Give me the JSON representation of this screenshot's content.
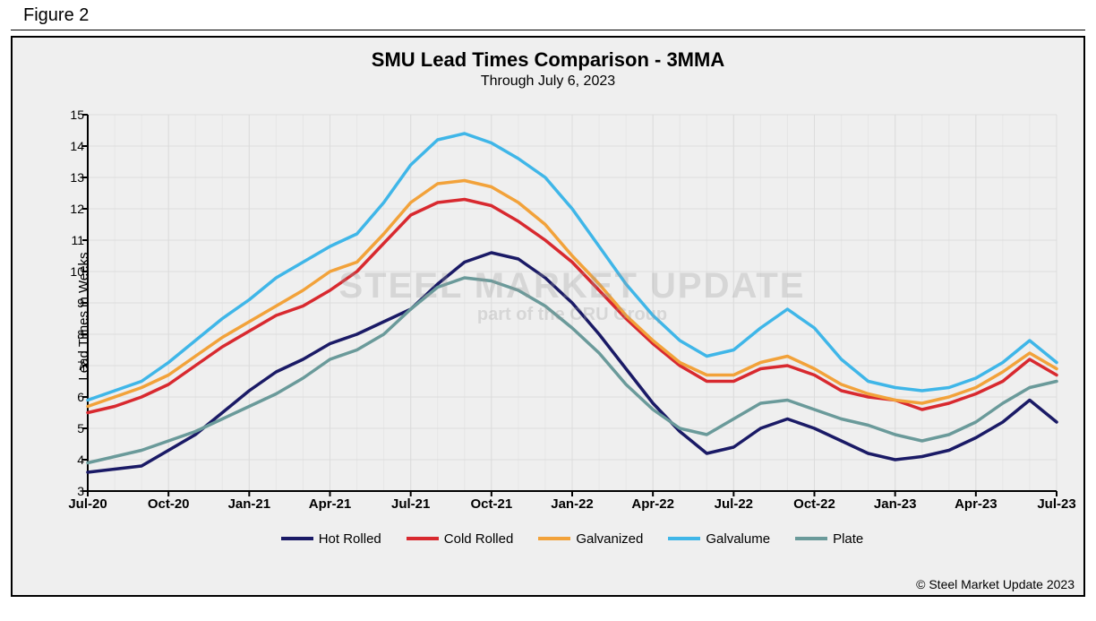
{
  "figure_label": "Figure 2",
  "chart": {
    "type": "line",
    "title": "SMU Lead Times Comparison - 3MMA",
    "subtitle": "Through July 6, 2023",
    "ylabel": "Lead Times in Weeks",
    "background_color": "#efefef",
    "frame_border_color": "#000000",
    "grid_color": "#dcdcdc",
    "grid_minor_color": "#e6e6e6",
    "axis_line_color": "#000000",
    "line_width": 3.5,
    "title_fontsize": 22,
    "subtitle_fontsize": 16,
    "label_fontsize": 15,
    "tick_fontsize": 14,
    "ylim": [
      3,
      15
    ],
    "ytick_step": 1,
    "x_major_labels": [
      "Jul-20",
      "Oct-20",
      "Jan-21",
      "Apr-21",
      "Jul-21",
      "Oct-21",
      "Jan-22",
      "Apr-22",
      "Jul-22",
      "Oct-22",
      "Jan-23",
      "Apr-23",
      "Jul-23"
    ],
    "n_points": 37,
    "series": [
      {
        "name": "Hot Rolled",
        "color": "#1a1a66",
        "values": [
          3.6,
          3.7,
          3.8,
          4.3,
          4.8,
          5.5,
          6.2,
          6.8,
          7.2,
          7.7,
          8.0,
          8.4,
          8.8,
          9.6,
          10.3,
          10.6,
          10.4,
          9.8,
          9.0,
          8.0,
          6.9,
          5.8,
          4.9,
          4.2,
          4.4,
          5.0,
          5.3,
          5.0,
          4.6,
          4.2,
          4.0,
          4.1,
          4.3,
          4.7,
          5.2,
          5.9,
          5.2
        ]
      },
      {
        "name": "Cold Rolled",
        "color": "#d8292f",
        "values": [
          5.5,
          5.7,
          6.0,
          6.4,
          7.0,
          7.6,
          8.1,
          8.6,
          8.9,
          9.4,
          10.0,
          10.9,
          11.8,
          12.2,
          12.3,
          12.1,
          11.6,
          11.0,
          10.3,
          9.4,
          8.5,
          7.7,
          7.0,
          6.5,
          6.5,
          6.9,
          7.0,
          6.7,
          6.2,
          6.0,
          5.9,
          5.6,
          5.8,
          6.1,
          6.5,
          7.2,
          6.7
        ]
      },
      {
        "name": "Galvanized",
        "color": "#f2a23a",
        "values": [
          5.7,
          6.0,
          6.3,
          6.7,
          7.3,
          7.9,
          8.4,
          8.9,
          9.4,
          10.0,
          10.3,
          11.2,
          12.2,
          12.8,
          12.9,
          12.7,
          12.2,
          11.5,
          10.5,
          9.6,
          8.6,
          7.8,
          7.1,
          6.7,
          6.7,
          7.1,
          7.3,
          6.9,
          6.4,
          6.1,
          5.9,
          5.8,
          6.0,
          6.3,
          6.8,
          7.4,
          6.9
        ]
      },
      {
        "name": "Galvalume",
        "color": "#3fb6e8",
        "values": [
          5.9,
          6.2,
          6.5,
          7.1,
          7.8,
          8.5,
          9.1,
          9.8,
          10.3,
          10.8,
          11.2,
          12.2,
          13.4,
          14.2,
          14.4,
          14.1,
          13.6,
          13.0,
          12.0,
          10.8,
          9.6,
          8.6,
          7.8,
          7.3,
          7.5,
          8.2,
          8.8,
          8.2,
          7.2,
          6.5,
          6.3,
          6.2,
          6.3,
          6.6,
          7.1,
          7.8,
          7.1
        ]
      },
      {
        "name": "Plate",
        "color": "#6a9a9a",
        "values": [
          3.9,
          4.1,
          4.3,
          4.6,
          4.9,
          5.3,
          5.7,
          6.1,
          6.6,
          7.2,
          7.5,
          8.0,
          8.8,
          9.5,
          9.8,
          9.7,
          9.4,
          8.9,
          8.2,
          7.4,
          6.4,
          5.6,
          5.0,
          4.8,
          5.3,
          5.8,
          5.9,
          5.6,
          5.3,
          5.1,
          4.8,
          4.6,
          4.8,
          5.2,
          5.8,
          6.3,
          6.5
        ]
      }
    ],
    "legend_order": [
      "Hot Rolled",
      "Cold Rolled",
      "Galvanized",
      "Galvalume",
      "Plate"
    ],
    "watermark_line1": "STEEL MARKET UPDATE",
    "watermark_line2": "part of the CRU Group"
  },
  "copyright": "© Steel Market Update 2023"
}
